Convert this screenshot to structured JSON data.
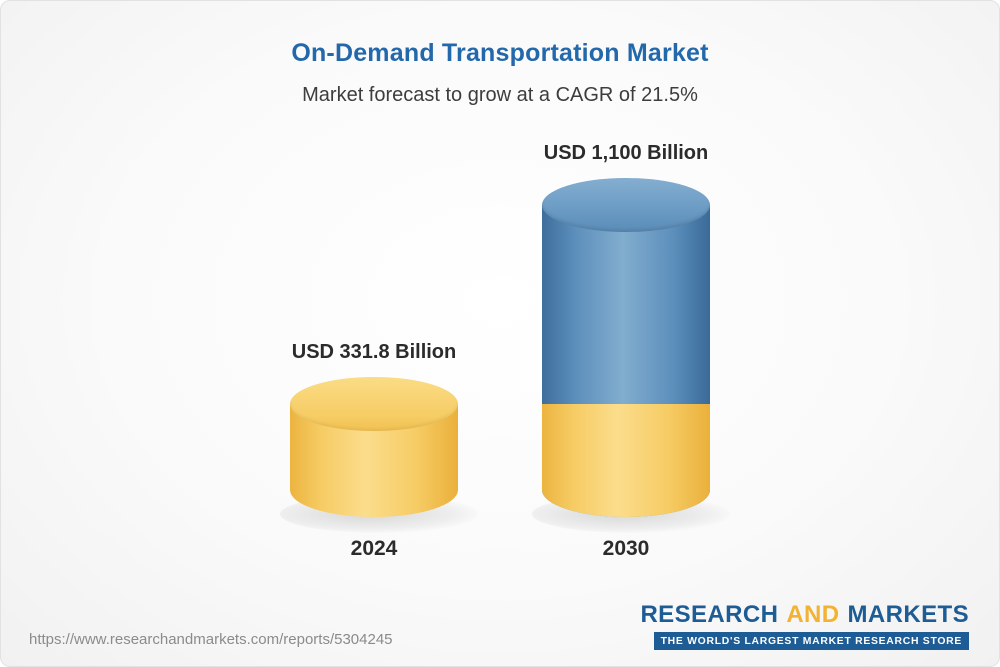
{
  "chart_data": {
    "type": "bar",
    "title": "On-Demand Transportation Market",
    "subtitle": "Market forecast to grow at a CAGR of 21.5%",
    "categories": [
      "2024",
      "2030"
    ],
    "values": [
      331.8,
      1100
    ],
    "value_labels": [
      "USD 331.8 Billion",
      "USD 1,100 Billion"
    ],
    "unit": "USD Billion",
    "cagr": "21.5%",
    "bar_colors": [
      "#f6cb63",
      "#5d8fbc"
    ],
    "legend": "none",
    "grid": "off",
    "bar_style": "3d-cylinder",
    "note": "2030 cylinder has a lower segment colored like the 2024 bar representing the 2024 value"
  },
  "footer": {
    "url": "https://www.researchandmarkets.com/reports/5304245",
    "logo": {
      "research": "RESEARCH",
      "and": "AND",
      "markets": "MARKETS",
      "tagline": "THE WORLD'S LARGEST MARKET RESEARCH STORE"
    }
  },
  "colors": {
    "title_blue": "#2368ab",
    "text_dark": "#2b2b2b",
    "url_gray": "#8b8b8b",
    "logo_blue": "#1d5c94",
    "logo_yellow": "#f2b234"
  }
}
